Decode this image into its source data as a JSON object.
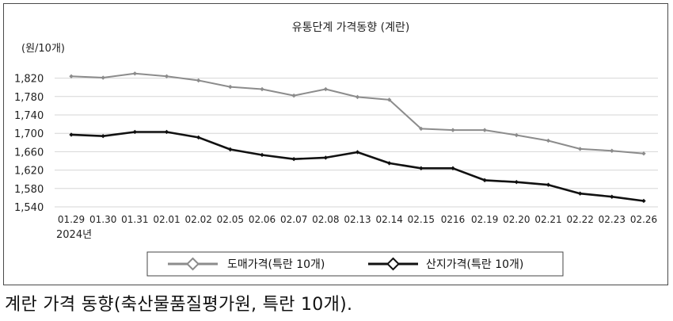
{
  "caption": "계란 가격 동향(축산물품질평가원, 특란 10개).",
  "colors": {
    "wholesale": "#8c8c8c",
    "farm": "#111111",
    "grid": "#d6d6d6",
    "axis_text": "#222222"
  },
  "chart_data": {
    "type": "line",
    "title": "유통단계 가격동향 (계란)",
    "ylabel": "(원/10개)",
    "xlabel": "",
    "year_label": "2024년",
    "categories": [
      "01.29",
      "01.30",
      "01.31",
      "02.01",
      "02.02",
      "02.05",
      "02.06",
      "02.07",
      "02.08",
      "02.13",
      "02.14",
      "02.15",
      "0216",
      "02.19",
      "02.20",
      "02.21",
      "02.22",
      "02.23",
      "02.26"
    ],
    "ylim": [
      1540,
      1840
    ],
    "yticks": [
      1540,
      1580,
      1620,
      1660,
      1700,
      1740,
      1780,
      1820
    ],
    "ytick_labels": [
      "1,540",
      "1,580",
      "1,620",
      "1,660",
      "1,700",
      "1,740",
      "1,780",
      "1,820"
    ],
    "grid": true,
    "legend_position": "bottom",
    "series": [
      {
        "name": "도매가격(특란 10개)",
        "marker": "diamond",
        "values": [
          1824,
          1821,
          1830,
          1824,
          1815,
          1801,
          1796,
          1782,
          1796,
          1779,
          1773,
          1710,
          1707,
          1707,
          1696,
          1684,
          1666,
          1662,
          1656
        ]
      },
      {
        "name": "산지가격(특란 10개)",
        "marker": "diamond",
        "values": [
          1697,
          1694,
          1703,
          1703,
          1691,
          1665,
          1653,
          1644,
          1647,
          1659,
          1635,
          1624,
          1624,
          1598,
          1594,
          1588,
          1569,
          1562,
          1553
        ]
      }
    ]
  }
}
